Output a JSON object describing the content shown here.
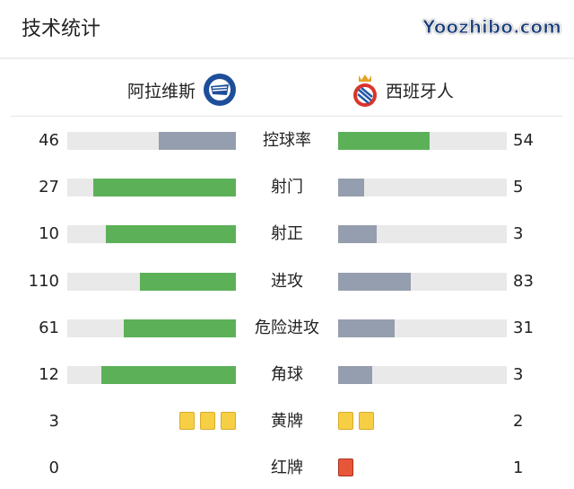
{
  "title": "技术统计",
  "home": {
    "name": "阿拉维斯",
    "logo": "alaves-crest-icon"
  },
  "away": {
    "name": "西班牙人",
    "logo": "espanyol-crest-icon"
  },
  "colors": {
    "lead": "#5cb158",
    "trail": "#959eae",
    "track": "#e9e9e9",
    "yellow": "#f7cf45",
    "red": "#e8563a"
  },
  "stats": [
    {
      "label": "控球率",
      "home": "46",
      "away": "54",
      "home_pct": 46,
      "away_pct": 54
    },
    {
      "label": "射门",
      "home": "27",
      "away": "5"
    },
    {
      "label": "射正",
      "home": "10",
      "away": "3"
    },
    {
      "label": "进攻",
      "home": "110",
      "away": "83"
    },
    {
      "label": "危险进攻",
      "home": "61",
      "away": "31"
    },
    {
      "label": "角球",
      "home": "12",
      "away": "3"
    }
  ],
  "cards": [
    {
      "label": "黄牌",
      "home": "3",
      "away": "2",
      "type": "yellow"
    },
    {
      "label": "红牌",
      "home": "0",
      "away": "1",
      "type": "red"
    }
  ],
  "watermark": "Yoozhibo.com"
}
